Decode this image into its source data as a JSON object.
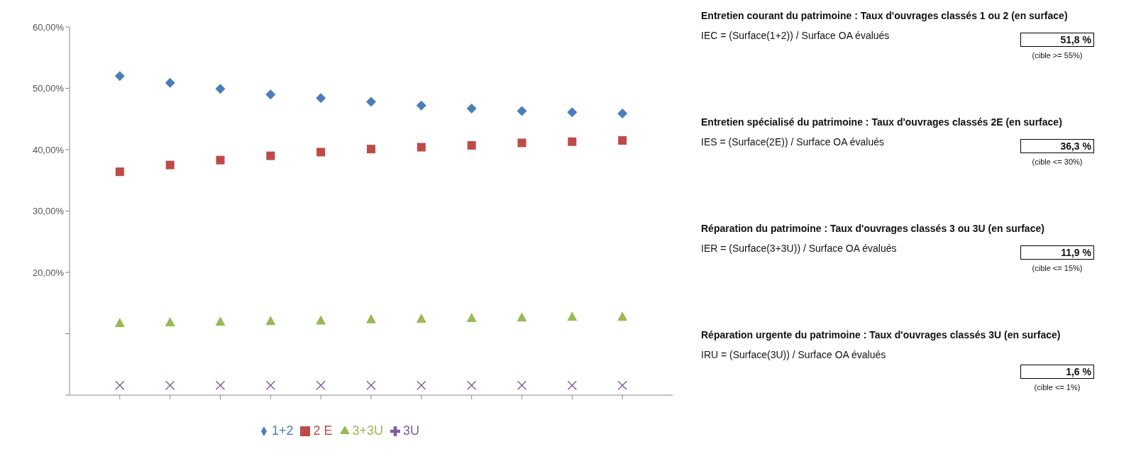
{
  "chart_data": [
    {
      "type": "scatter",
      "categories": [
        null,
        null,
        null,
        null,
        null,
        null,
        null,
        null,
        null,
        null,
        null
      ],
      "series": [
        {
          "name": "1+2",
          "color": "#4a7ebb",
          "marker": "diamond",
          "values": [
            52.0,
            50.9,
            49.9,
            49.0,
            48.4,
            47.8,
            47.2,
            46.7,
            46.3,
            46.1,
            45.9
          ]
        },
        {
          "name": "2 E",
          "color": "#be4b48",
          "marker": "square",
          "values": [
            36.4,
            37.5,
            38.3,
            39.0,
            39.6,
            40.1,
            40.4,
            40.7,
            41.1,
            41.3,
            41.5
          ]
        },
        {
          "name": "3+3U",
          "color": "#98b954",
          "marker": "triangle",
          "values": [
            11.8,
            11.9,
            12.0,
            12.1,
            12.2,
            12.4,
            12.5,
            12.6,
            12.7,
            12.8,
            12.8
          ]
        },
        {
          "name": "3U",
          "color": "#7d60a0",
          "marker": "cross",
          "values": [
            1.6,
            1.6,
            1.6,
            1.6,
            1.6,
            1.6,
            1.6,
            1.6,
            1.6,
            1.6,
            1.6
          ]
        }
      ],
      "ylim": [
        0,
        60
      ],
      "yticks": [
        {
          "value": 0,
          "label": null
        },
        {
          "value": 10,
          "label": null
        },
        {
          "value": 20,
          "label": "20,00%"
        },
        {
          "value": 30,
          "label": "30,00%"
        },
        {
          "value": 40,
          "label": "40,00%"
        },
        {
          "value": 50,
          "label": "50,00%"
        },
        {
          "value": 60,
          "label": "60,00%"
        }
      ],
      "grid": false,
      "legend": "bottom"
    },
    {
      "type": "other",
      "annotations": [
        "Entretien courant du patrimoine : Taux d'ouvrages classés 1 ou 2 (en surface)",
        "IEC = (Surface(1+2)) / Surface OA évalués",
        "51,8 %",
        "(cible >= 55%)",
        "Entretien spécialisé du patrimoine : Taux d'ouvrages classés 2E (en surface)",
        "IES = (Surface(2E)) / Surface OA évalués",
        "36,3 %",
        "(cible <= 30%)",
        "Réparation du patrimoine : Taux d'ouvrages classés 3 ou 3U (en surface)",
        "IER = (Surface(3+3U)) / Surface OA évalués",
        "11,9 %",
        "(cible <= 15%)",
        "Réparation urgente du patrimoine : Taux d'ouvrages classés 3U (en surface)",
        "IRU = (Surface(3U)) / Surface OA évalués",
        "1,6 %",
        "(cible <= 1%)"
      ]
    }
  ]
}
